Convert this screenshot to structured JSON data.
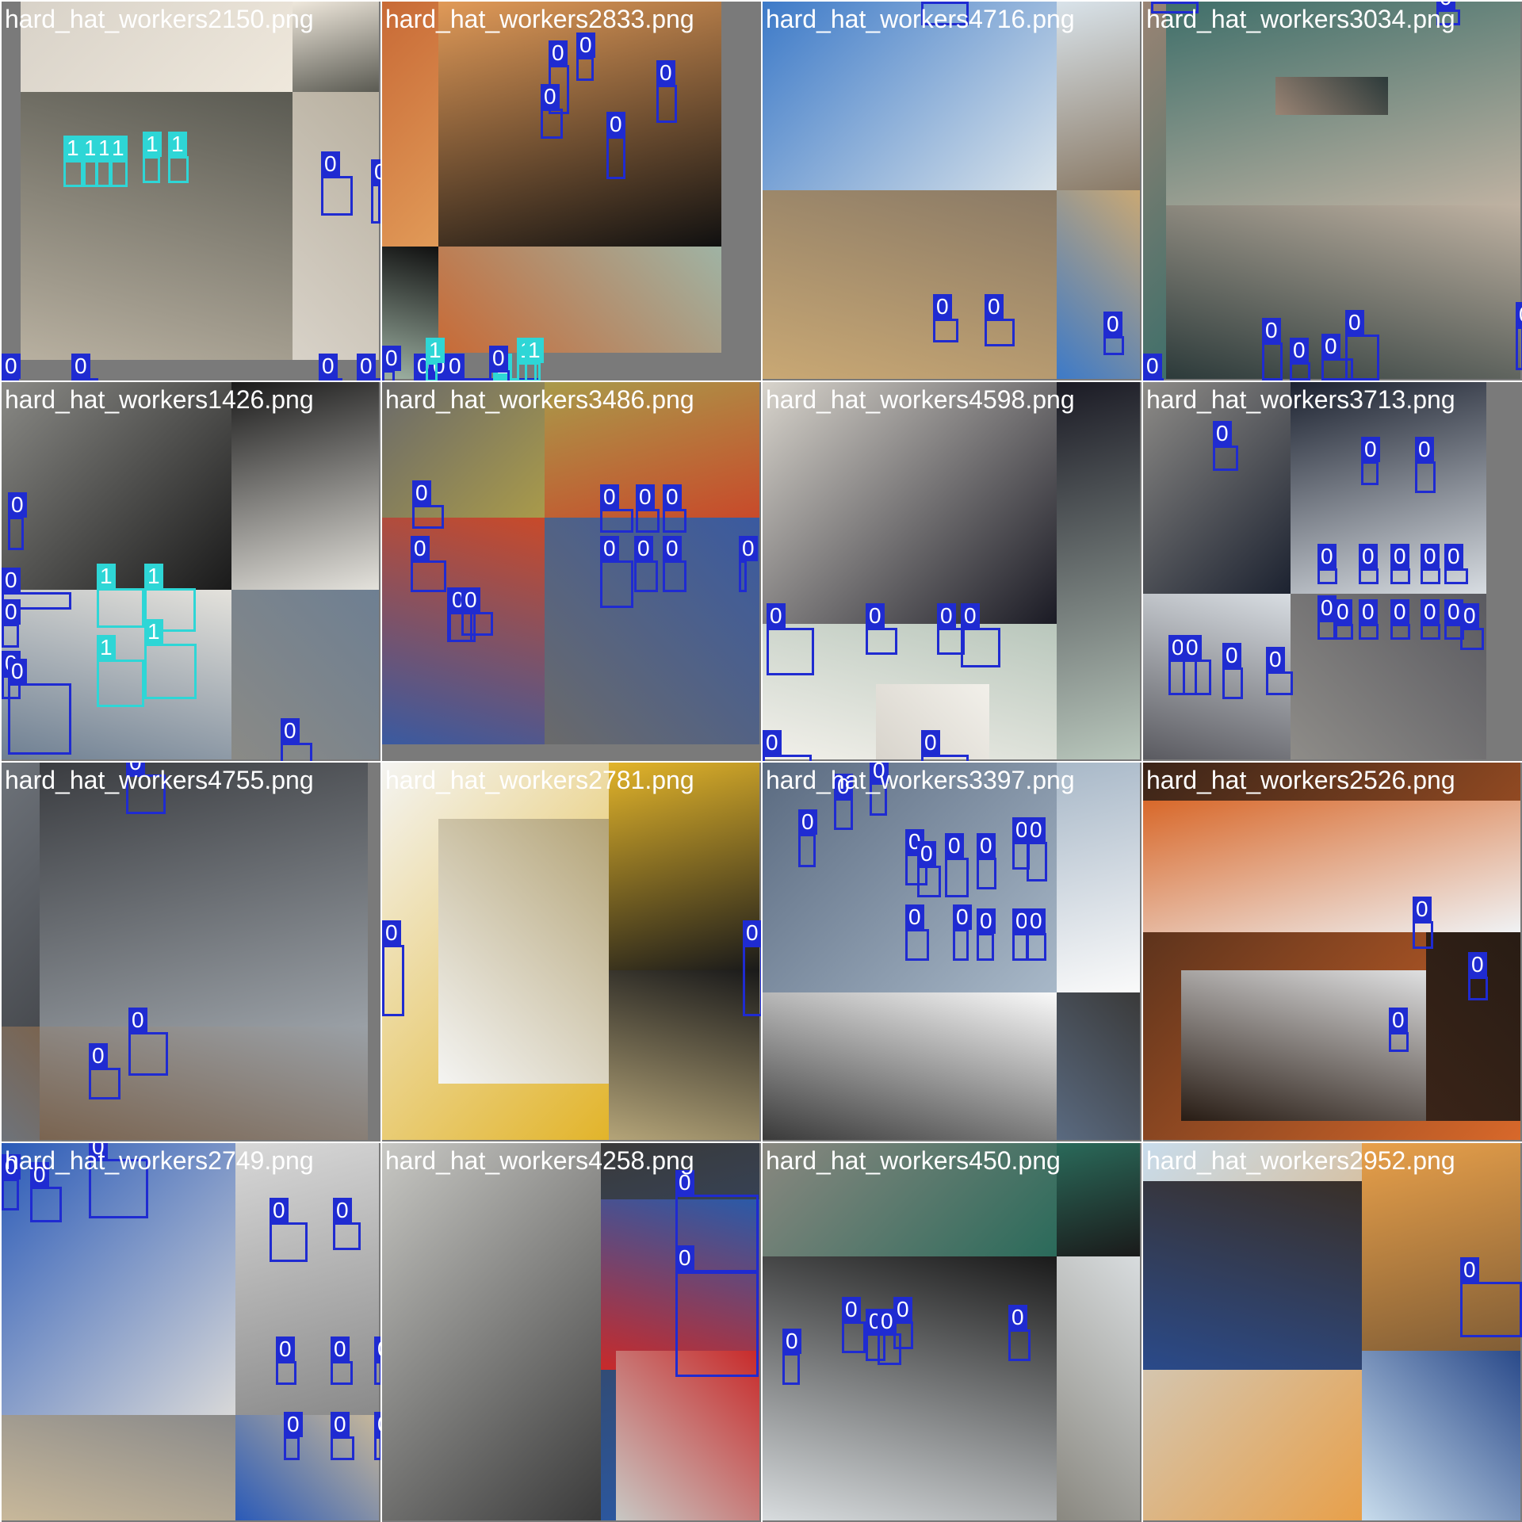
{
  "grid": {
    "columns": 4,
    "rows": 4
  },
  "class_colors": {
    "0": "#1f2bd1",
    "1": "#2ed6d6"
  },
  "tiles": [
    {
      "caption": "hard_hat_workers2150.png",
      "palette": [
        "#d8d2c8",
        "#efe8dc",
        "#5a5a52",
        "#b8b0a0"
      ],
      "boxes": [
        {
          "cls": "1"
        },
        {
          "cls": "1"
        },
        {
          "cls": "1"
        },
        {
          "cls": "1"
        },
        {
          "cls": "1"
        },
        {
          "cls": "1"
        },
        {
          "cls": "0"
        },
        {
          "cls": "0"
        },
        {
          "cls": "0"
        },
        {
          "cls": "0"
        },
        {
          "cls": "0"
        },
        {
          "cls": "0"
        }
      ]
    },
    {
      "caption": "hard_hat_workers2833.png",
      "palette": [
        "#c86a36",
        "#e19a58",
        "#101010",
        "#9fb3a4"
      ],
      "boxes": [
        {
          "cls": "0"
        },
        {
          "cls": "0"
        },
        {
          "cls": "0"
        },
        {
          "cls": "0"
        },
        {
          "cls": "0"
        },
        {
          "cls": "0"
        },
        {
          "cls": "0"
        },
        {
          "cls": "0"
        },
        {
          "cls": "0"
        },
        {
          "cls": "1"
        },
        {
          "cls": "1"
        },
        {
          "cls": "1"
        },
        {
          "cls": "1"
        },
        {
          "cls": "0"
        },
        {
          "cls": "0"
        },
        {
          "cls": "0"
        },
        {
          "cls": "0"
        }
      ]
    },
    {
      "caption": "hard_hat_workers4716.png",
      "palette": [
        "#3d7ac8",
        "#d9e3ea",
        "#8a7a66",
        "#c9a874"
      ],
      "boxes": [
        {
          "cls": "0"
        },
        {
          "cls": "0"
        },
        {
          "cls": "0"
        },
        {
          "cls": "0"
        }
      ]
    },
    {
      "caption": "hard_hat_workers3034.png",
      "palette": [
        "#9a8474",
        "#3f6f6a",
        "#bfb2a2",
        "#2c3a3a"
      ],
      "boxes": [
        {
          "cls": "0"
        },
        {
          "cls": "0"
        },
        {
          "cls": "0"
        },
        {
          "cls": "0"
        },
        {
          "cls": "0"
        },
        {
          "cls": "0"
        },
        {
          "cls": "0"
        },
        {
          "cls": "0"
        }
      ]
    },
    {
      "caption": "hard_hat_workers1426.png",
      "palette": [
        "#8a8a86",
        "#1a1a1a",
        "#e4e2dc",
        "#6e7f92"
      ],
      "boxes": [
        {
          "cls": "0"
        },
        {
          "cls": "0"
        },
        {
          "cls": "0"
        },
        {
          "cls": "0"
        },
        {
          "cls": "1"
        },
        {
          "cls": "1"
        },
        {
          "cls": "1"
        },
        {
          "cls": "1"
        },
        {
          "cls": "0"
        },
        {
          "cls": "0"
        }
      ]
    },
    {
      "caption": "hard_hat_workers3486.png",
      "palette": [
        "#6a6a6a",
        "#a99a4a",
        "#c84a2a",
        "#3a5aa0"
      ],
      "boxes": [
        {
          "cls": "0"
        },
        {
          "cls": "0"
        },
        {
          "cls": "0"
        },
        {
          "cls": "0"
        },
        {
          "cls": "0"
        },
        {
          "cls": "0"
        },
        {
          "cls": "0"
        },
        {
          "cls": "0"
        },
        {
          "cls": "0"
        },
        {
          "cls": "0"
        },
        {
          "cls": "0"
        },
        {
          "cls": "0"
        }
      ]
    },
    {
      "caption": "hard_hat_workers4598.png",
      "palette": [
        "#d8d4cc",
        "#1a1a24",
        "#b9c7bc",
        "#f2f0ea"
      ],
      "boxes": [
        {
          "cls": "0"
        },
        {
          "cls": "0"
        },
        {
          "cls": "0"
        },
        {
          "cls": "0"
        },
        {
          "cls": "0"
        },
        {
          "cls": "0"
        }
      ]
    },
    {
      "caption": "hard_hat_workers3713.png",
      "palette": [
        "#8e8c88",
        "#1c2230",
        "#d8dde2",
        "#5a5a60"
      ],
      "boxes": [
        {
          "cls": "0"
        },
        {
          "cls": "0"
        },
        {
          "cls": "0"
        },
        {
          "cls": "0"
        },
        {
          "cls": "0"
        },
        {
          "cls": "0"
        },
        {
          "cls": "0"
        },
        {
          "cls": "0"
        },
        {
          "cls": "0"
        },
        {
          "cls": "0"
        },
        {
          "cls": "0"
        },
        {
          "cls": "0"
        },
        {
          "cls": "0"
        },
        {
          "cls": "0"
        },
        {
          "cls": "0"
        },
        {
          "cls": "0"
        },
        {
          "cls": "0"
        },
        {
          "cls": "0"
        },
        {
          "cls": "0"
        }
      ]
    },
    {
      "caption": "hard_hat_workers4755.png",
      "palette": [
        "#6e737a",
        "#3a3c40",
        "#9aa0a6",
        "#7a6450"
      ],
      "boxes": [
        {
          "cls": "0"
        },
        {
          "cls": "0"
        },
        {
          "cls": "0"
        }
      ]
    },
    {
      "caption": "hard_hat_workers2781.png",
      "palette": [
        "#f4f4f2",
        "#e2b42a",
        "#1a1a1a",
        "#b4a478"
      ],
      "boxes": [
        {
          "cls": "0"
        },
        {
          "cls": "0"
        }
      ]
    },
    {
      "caption": "hard_hat_workers3397.png",
      "palette": [
        "#5a6a80",
        "#a8b8c8",
        "#fafafa",
        "#3a3a3a"
      ],
      "boxes": [
        {
          "cls": "0"
        },
        {
          "cls": "0"
        },
        {
          "cls": "0"
        },
        {
          "cls": "0"
        },
        {
          "cls": "0"
        },
        {
          "cls": "0"
        },
        {
          "cls": "0"
        },
        {
          "cls": "0"
        },
        {
          "cls": "0"
        },
        {
          "cls": "0"
        },
        {
          "cls": "0"
        },
        {
          "cls": "0"
        },
        {
          "cls": "0"
        },
        {
          "cls": "0"
        }
      ]
    },
    {
      "caption": "hard_hat_workers2526.png",
      "palette": [
        "#3a2418",
        "#d8682a",
        "#f0f2f4",
        "#281c14"
      ],
      "boxes": [
        {
          "cls": "0"
        },
        {
          "cls": "0"
        },
        {
          "cls": "0"
        }
      ]
    },
    {
      "caption": "hard_hat_workers2749.png",
      "palette": [
        "#2a5ab8",
        "#d8d8d8",
        "#8a8a8a",
        "#c8b89a"
      ],
      "boxes": [
        {
          "cls": "0"
        },
        {
          "cls": "0"
        },
        {
          "cls": "0"
        },
        {
          "cls": "0"
        },
        {
          "cls": "0"
        },
        {
          "cls": "0"
        },
        {
          "cls": "0"
        },
        {
          "cls": "0"
        },
        {
          "cls": "0"
        },
        {
          "cls": "0"
        },
        {
          "cls": "0"
        }
      ]
    },
    {
      "caption": "hard_hat_workers4258.png",
      "palette": [
        "#c8c8c4",
        "#3a3a3a",
        "#2a5aa8",
        "#c82a2a"
      ],
      "boxes": [
        {
          "cls": "0"
        },
        {
          "cls": "0"
        }
      ]
    },
    {
      "caption": "hard_hat_workers450.png",
      "palette": [
        "#8a8880",
        "#2a6a5a",
        "#1a1a1a",
        "#d8dcde"
      ],
      "boxes": [
        {
          "cls": "0"
        },
        {
          "cls": "0"
        },
        {
          "cls": "0"
        },
        {
          "cls": "0"
        },
        {
          "cls": "0"
        },
        {
          "cls": "0"
        }
      ]
    },
    {
      "caption": "hard_hat_workers2952.png",
      "palette": [
        "#c8dcec",
        "#e8a04a",
        "#3a3028",
        "#2a4a8a"
      ],
      "boxes": [
        {
          "cls": "0"
        }
      ]
    }
  ]
}
